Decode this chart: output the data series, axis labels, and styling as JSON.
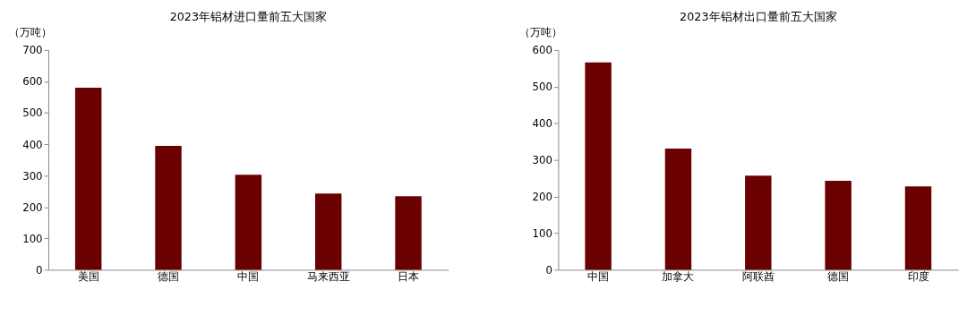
{
  "chart_data": [
    {
      "type": "bar",
      "title": "2023年铝材进口量前五大国家",
      "ylabel": "（万吨）",
      "categories": [
        "美国",
        "德国",
        "中国",
        "马来西亚",
        "日本"
      ],
      "series": [
        {
          "color": "#6b0000",
          "values": [
            580,
            395,
            303,
            243,
            234
          ]
        }
      ],
      "ylim": [
        0,
        700
      ],
      "yticks": [
        0,
        100,
        200,
        300,
        400,
        500,
        600,
        700
      ],
      "grid": false
    },
    {
      "type": "bar",
      "title": "2023年铝材出口量前五大国家",
      "ylabel": "（万吨）",
      "categories": [
        "中国",
        "加拿大",
        "阿联酋",
        "德国",
        "印度"
      ],
      "series": [
        {
          "color": "#6b0000",
          "values": [
            566,
            331,
            257,
            243,
            228
          ]
        }
      ],
      "ylim": [
        0,
        600
      ],
      "yticks": [
        0,
        100,
        200,
        300,
        400,
        500,
        600
      ],
      "grid": false
    }
  ]
}
